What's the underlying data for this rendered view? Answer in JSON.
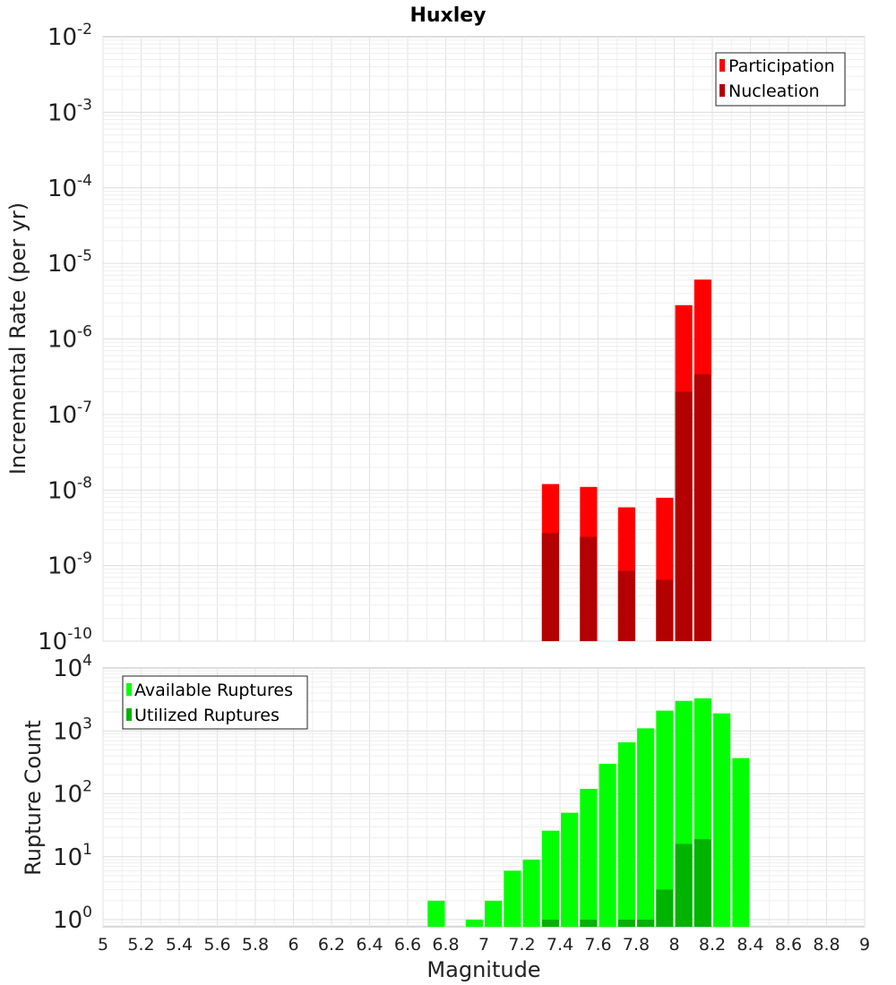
{
  "chart_data": [
    {
      "type": "bar",
      "title": "Huxley",
      "xlabel": "",
      "ylabel": "Incremental Rate (per yr)",
      "yscale": "log",
      "ylim": [
        1e-10,
        0.01
      ],
      "ytick_exponents": [
        "-10",
        "-9",
        "-8",
        "-7",
        "-6",
        "-5",
        "-4",
        "-3",
        "-2"
      ],
      "ytick_base": "10",
      "legend_position": "top-right",
      "grid": true,
      "x": [
        7.35,
        7.55,
        7.75,
        7.95,
        8.05,
        8.15
      ],
      "series": [
        {
          "name": "Participation",
          "color": "#ff0000",
          "values": [
            1.2e-08,
            1.1e-08,
            5.9e-09,
            7.9e-09,
            2.8e-06,
            6.1e-06
          ]
        },
        {
          "name": "Nucleation",
          "color": "#b30000",
          "values": [
            2.7e-09,
            2.4e-09,
            8.5e-10,
            6.5e-10,
            2e-07,
            3.4e-07
          ]
        }
      ]
    },
    {
      "type": "bar",
      "title": "",
      "xlabel": "Magnitude",
      "ylabel": "Rupture Count",
      "yscale": "log",
      "ylim": [
        0.77,
        10000
      ],
      "ytick_exponents": [
        "0",
        "1",
        "2",
        "3",
        "4"
      ],
      "ytick_base": "10",
      "legend_position": "top-left",
      "grid": true,
      "xlim": [
        5,
        9
      ],
      "xticks": [
        "5",
        "5.2",
        "5.4",
        "5.6",
        "5.8",
        "6",
        "6.2",
        "6.4",
        "6.6",
        "6.8",
        "7",
        "7.2",
        "7.4",
        "7.6",
        "7.8",
        "8",
        "8.2",
        "8.4",
        "8.6",
        "8.8",
        "9"
      ],
      "series": [
        {
          "name": "Available Ruptures",
          "color": "#00ff00",
          "x": [
            6.75,
            6.95,
            7.05,
            7.15,
            7.25,
            7.35,
            7.45,
            7.55,
            7.65,
            7.75,
            7.85,
            7.95,
            8.05,
            8.15,
            8.25,
            8.35
          ],
          "values": [
            2,
            1,
            2,
            6,
            9,
            26,
            50,
            120,
            300,
            660,
            1100,
            2100,
            3000,
            3300,
            1900,
            370
          ]
        },
        {
          "name": "Utilized Ruptures",
          "color": "#00b300",
          "x": [
            7.35,
            7.55,
            7.75,
            7.85,
            7.95,
            8.05,
            8.15
          ],
          "values": [
            1,
            1,
            1,
            1,
            3,
            16,
            19
          ]
        }
      ]
    }
  ]
}
